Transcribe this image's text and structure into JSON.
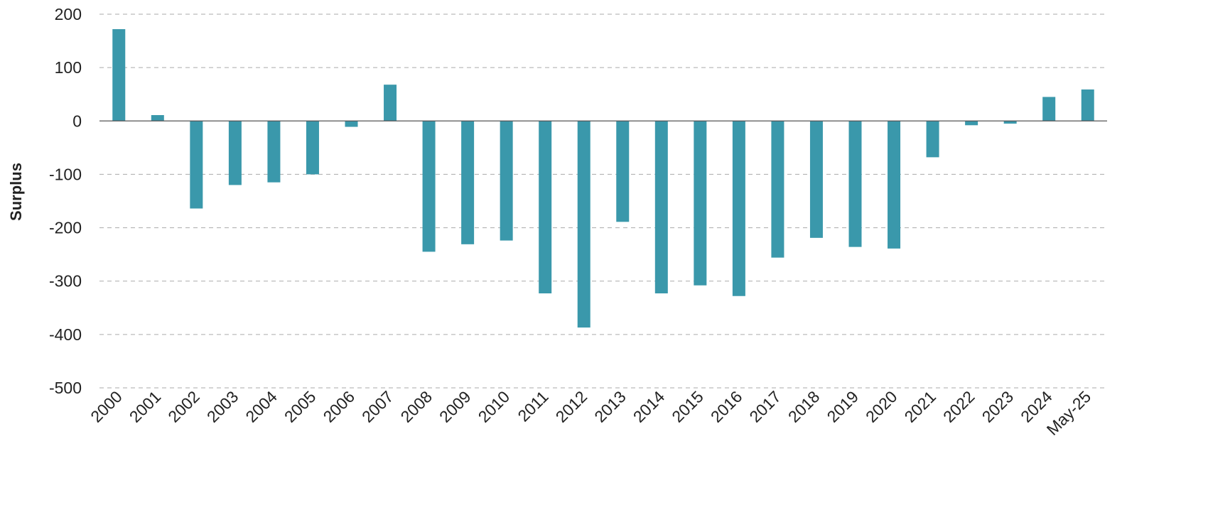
{
  "chart_data": {
    "type": "bar",
    "title": "",
    "xlabel": "",
    "ylabel": "Surplus",
    "ylim": [
      -500,
      200
    ],
    "yticks": [
      200,
      100,
      0,
      -100,
      -200,
      -300,
      -400,
      -500
    ],
    "grid": true,
    "legend": "none",
    "bar_color": "#3a98ab",
    "categories": [
      "2000",
      "2001",
      "2002",
      "2003",
      "2004",
      "2005",
      "2006",
      "2007",
      "2008",
      "2009",
      "2010",
      "2011",
      "2012",
      "2013",
      "2014",
      "2015",
      "2016",
      "2017",
      "2018",
      "2019",
      "2020",
      "2021",
      "2022",
      "2023",
      "2024",
      "May-25"
    ],
    "values": [
      172,
      11,
      -164,
      -120,
      -115,
      -100,
      -11,
      68,
      -245,
      -231,
      -224,
      -323,
      -387,
      -189,
      -323,
      -308,
      -328,
      -256,
      -219,
      -236,
      -239,
      -68,
      -8,
      -5,
      45,
      59
    ]
  }
}
